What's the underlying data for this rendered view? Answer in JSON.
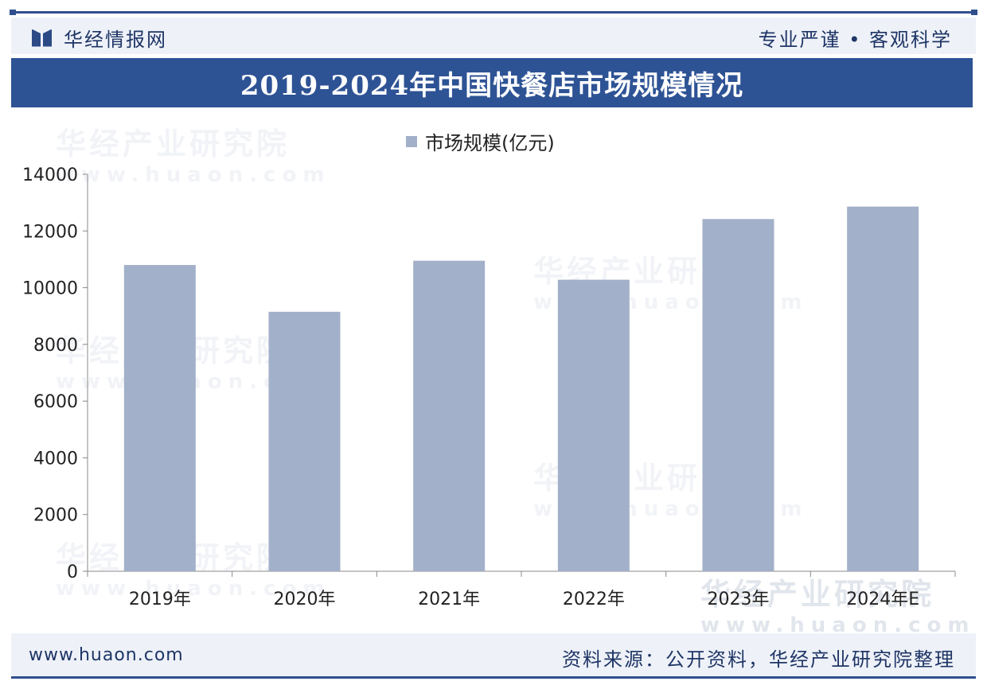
{
  "header": {
    "brand": "华经情报网",
    "slogan": "专业严谨 • 客观科学"
  },
  "watermark": {
    "text": "华经产业研究院",
    "site": "www.huaon.com"
  },
  "footer": {
    "site": "www.huaon.com",
    "source": "资料来源：公开资料，华经产业研究院整理"
  },
  "colors": {
    "accent": "#2e5395",
    "bar": "#a2b0c9",
    "band_bg": "#eef2f8"
  },
  "chart_data": {
    "type": "bar",
    "title": "2019-2024年中国快餐店市场规模情况",
    "categories": [
      "2019年",
      "2020年",
      "2021年",
      "2022年",
      "2023年",
      "2024年E"
    ],
    "series": [
      {
        "name": "市场规模(亿元)",
        "values": [
          10800,
          9150,
          10950,
          10280,
          12420,
          12860
        ]
      }
    ],
    "yticks": [
      0,
      2000,
      4000,
      6000,
      8000,
      10000,
      12000,
      14000
    ],
    "ylim": [
      0,
      14000
    ],
    "grid": false,
    "legend": "top-center"
  }
}
